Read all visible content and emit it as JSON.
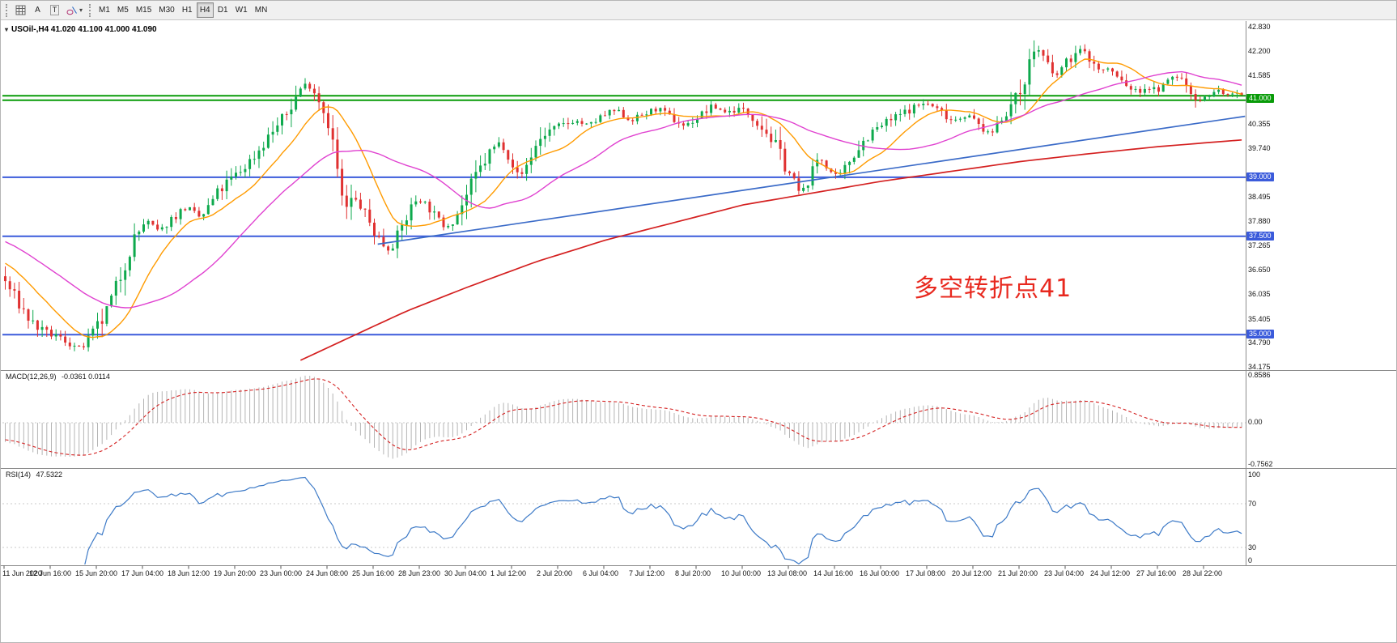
{
  "toolbar": {
    "tools": [
      {
        "name": "grid-tool"
      },
      {
        "name": "cursor-tool",
        "label": "A"
      },
      {
        "name": "text-tool",
        "label": "T"
      },
      {
        "name": "shapes-tool",
        "dropdown": "▾"
      }
    ],
    "timeframes": [
      {
        "label": "M1"
      },
      {
        "label": "M5"
      },
      {
        "label": "M15"
      },
      {
        "label": "M30"
      },
      {
        "label": "H1"
      },
      {
        "label": "H4",
        "active": true
      },
      {
        "label": "D1"
      },
      {
        "label": "W1"
      },
      {
        "label": "MN"
      }
    ]
  },
  "chart": {
    "title": "USOil-,H4 41.020 41.100 41.000 41.090",
    "collapse_icon": "▾",
    "annotation": {
      "text": "多空转折点41",
      "color": "#e8281e"
    },
    "price_axis": {
      "ticks": [
        42.83,
        42.2,
        41.585,
        40.355,
        39.74,
        38.495,
        37.88,
        37.265,
        36.65,
        36.035,
        35.405,
        34.79,
        34.175
      ]
    },
    "hlines": [
      {
        "price": 41.07,
        "color": "#089b08",
        "width": 2
      },
      {
        "price": 40.96,
        "color": "#089b08",
        "width": 2,
        "tag": "41.000",
        "tag_price": 41.0
      },
      {
        "price": 39.0,
        "color": "#3b5bdb",
        "width": 2,
        "tag": "39.000",
        "tag_price": 39.0
      },
      {
        "price": 37.5,
        "color": "#3b5bdb",
        "width": 2,
        "tag": "37.500",
        "tag_price": 37.5
      },
      {
        "price": 35.0,
        "color": "#3b5bdb",
        "width": 2,
        "tag": "35.000",
        "tag_price": 35.0
      }
    ],
    "trendline": {
      "from": [
        81,
        37.3
      ],
      "to": [
        269,
        40.55
      ],
      "color": "#3b6bc8"
    },
    "ma_red": {
      "color": "#d42020",
      "points": [
        [
          64,
          34.35
        ],
        [
          75,
          34.95
        ],
        [
          87,
          35.6
        ],
        [
          100,
          36.2
        ],
        [
          115,
          36.85
        ],
        [
          130,
          37.4
        ],
        [
          145,
          37.85
        ],
        [
          160,
          38.3
        ],
        [
          175,
          38.6
        ],
        [
          190,
          38.9
        ],
        [
          205,
          39.15
        ],
        [
          220,
          39.4
        ],
        [
          235,
          39.6
        ],
        [
          250,
          39.78
        ],
        [
          268,
          39.95
        ]
      ]
    },
    "ma_fast": {
      "color": "#ff9b00",
      "period": 13
    },
    "ma_slow": {
      "color": "#e042d0",
      "period": 34
    },
    "candles": {
      "up": "#0ea94d",
      "down": "#e03131",
      "count": 269,
      "last_close": 41.09,
      "waypoints": [
        [
          -60,
          38.45
        ],
        [
          -40,
          38.3
        ],
        [
          -25,
          37.85
        ],
        [
          -12,
          37.25
        ],
        [
          -4,
          36.7
        ],
        [
          0,
          36.45
        ],
        [
          3,
          35.9
        ],
        [
          6,
          35.35
        ],
        [
          9,
          35.05
        ],
        [
          12,
          34.95
        ],
        [
          15,
          34.75
        ],
        [
          17,
          34.62
        ],
        [
          19,
          34.95
        ],
        [
          22,
          35.4
        ],
        [
          25,
          36.3
        ],
        [
          28,
          37.3
        ],
        [
          31,
          37.9
        ],
        [
          34,
          37.6
        ],
        [
          37,
          38.0
        ],
        [
          40,
          38.25
        ],
        [
          43,
          37.95
        ],
        [
          46,
          38.5
        ],
        [
          49,
          38.9
        ],
        [
          52,
          39.2
        ],
        [
          55,
          39.6
        ],
        [
          58,
          40.1
        ],
        [
          61,
          40.5
        ],
        [
          63,
          40.9
        ],
        [
          65,
          41.35
        ],
        [
          67,
          41.3
        ],
        [
          69,
          40.9
        ],
        [
          71,
          40.3
        ],
        [
          73,
          38.9
        ],
        [
          74,
          38.1
        ],
        [
          76,
          38.45
        ],
        [
          78,
          38.2
        ],
        [
          80,
          37.75
        ],
        [
          82,
          37.35
        ],
        [
          84,
          37.15
        ],
        [
          86,
          37.6
        ],
        [
          88,
          38.1
        ],
        [
          90,
          38.5
        ],
        [
          92,
          38.3
        ],
        [
          94,
          37.95
        ],
        [
          96,
          37.75
        ],
        [
          98,
          37.95
        ],
        [
          100,
          38.4
        ],
        [
          103,
          39.1
        ],
        [
          106,
          39.7
        ],
        [
          108,
          39.9
        ],
        [
          110,
          39.5
        ],
        [
          112,
          38.95
        ],
        [
          114,
          39.4
        ],
        [
          116,
          39.9
        ],
        [
          118,
          40.15
        ],
        [
          121,
          40.3
        ],
        [
          124,
          40.45
        ],
        [
          127,
          40.3
        ],
        [
          130,
          40.55
        ],
        [
          133,
          40.7
        ],
        [
          136,
          40.45
        ],
        [
          139,
          40.6
        ],
        [
          142,
          40.75
        ],
        [
          145,
          40.5
        ],
        [
          148,
          40.3
        ],
        [
          151,
          40.55
        ],
        [
          154,
          40.8
        ],
        [
          157,
          40.65
        ],
        [
          160,
          40.75
        ],
        [
          163,
          40.5
        ],
        [
          166,
          40.1
        ],
        [
          169,
          39.5
        ],
        [
          171,
          39.0
        ],
        [
          173,
          38.55
        ],
        [
          175,
          39.0
        ],
        [
          177,
          39.55
        ],
        [
          179,
          39.2
        ],
        [
          181,
          38.95
        ],
        [
          183,
          39.3
        ],
        [
          185,
          39.7
        ],
        [
          188,
          40.1
        ],
        [
          191,
          40.35
        ],
        [
          194,
          40.55
        ],
        [
          197,
          40.75
        ],
        [
          200,
          40.9
        ],
        [
          203,
          40.7
        ],
        [
          206,
          40.45
        ],
        [
          209,
          40.6
        ],
        [
          212,
          40.3
        ],
        [
          214,
          40.05
        ],
        [
          216,
          40.45
        ],
        [
          218,
          40.75
        ],
        [
          220,
          41.0
        ],
        [
          222,
          41.7
        ],
        [
          224,
          42.35
        ],
        [
          226,
          42.0
        ],
        [
          228,
          41.5
        ],
        [
          230,
          41.85
        ],
        [
          232,
          42.1
        ],
        [
          234,
          42.25
        ],
        [
          236,
          41.95
        ],
        [
          238,
          41.7
        ],
        [
          240,
          41.75
        ],
        [
          242,
          41.5
        ],
        [
          244,
          41.3
        ],
        [
          246,
          41.15
        ],
        [
          248,
          41.3
        ],
        [
          250,
          41.2
        ],
        [
          252,
          41.35
        ],
        [
          254,
          41.6
        ],
        [
          256,
          41.45
        ],
        [
          258,
          41.1
        ],
        [
          260,
          40.95
        ],
        [
          262,
          41.15
        ],
        [
          264,
          41.2
        ],
        [
          266,
          41.05
        ],
        [
          268,
          41.09
        ]
      ]
    },
    "time_labels": [
      "11 Jun 2020",
      "12 Jun 16:00",
      "15 Jun 20:00",
      "17 Jun 04:00",
      "18 Jun 12:00",
      "19 Jun 20:00",
      "23 Jun 00:00",
      "24 Jun 08:00",
      "25 Jun 16:00",
      "28 Jun 23:00",
      "30 Jun 04:00",
      "1 Jul 12:00",
      "2 Jul 20:00",
      "6 Jul 04:00",
      "7 Jul 12:00",
      "8 Jul 20:00",
      "10 Jul 00:00",
      "13 Jul 08:00",
      "14 Jul 16:00",
      "16 Jul 00:00",
      "17 Jul 08:00",
      "20 Jul 12:00",
      "21 Jul 20:00",
      "23 Jul 04:00",
      "24 Jul 12:00",
      "27 Jul 16:00",
      "28 Jul 22:00"
    ]
  },
  "macd": {
    "label": "MACD(12,26,9)",
    "values": "-0.0361 0.0114",
    "scale": [
      "0.8586",
      "0.00",
      "-0.7562"
    ],
    "hist_color": "#b4b4b4",
    "signal_color": "#d42020"
  },
  "rsi": {
    "label": "RSI(14)",
    "value": "47.5322",
    "scale": [
      "100",
      "70",
      "30",
      "0"
    ],
    "levels": [
      70,
      30
    ],
    "line_color": "#3d7ac7"
  }
}
